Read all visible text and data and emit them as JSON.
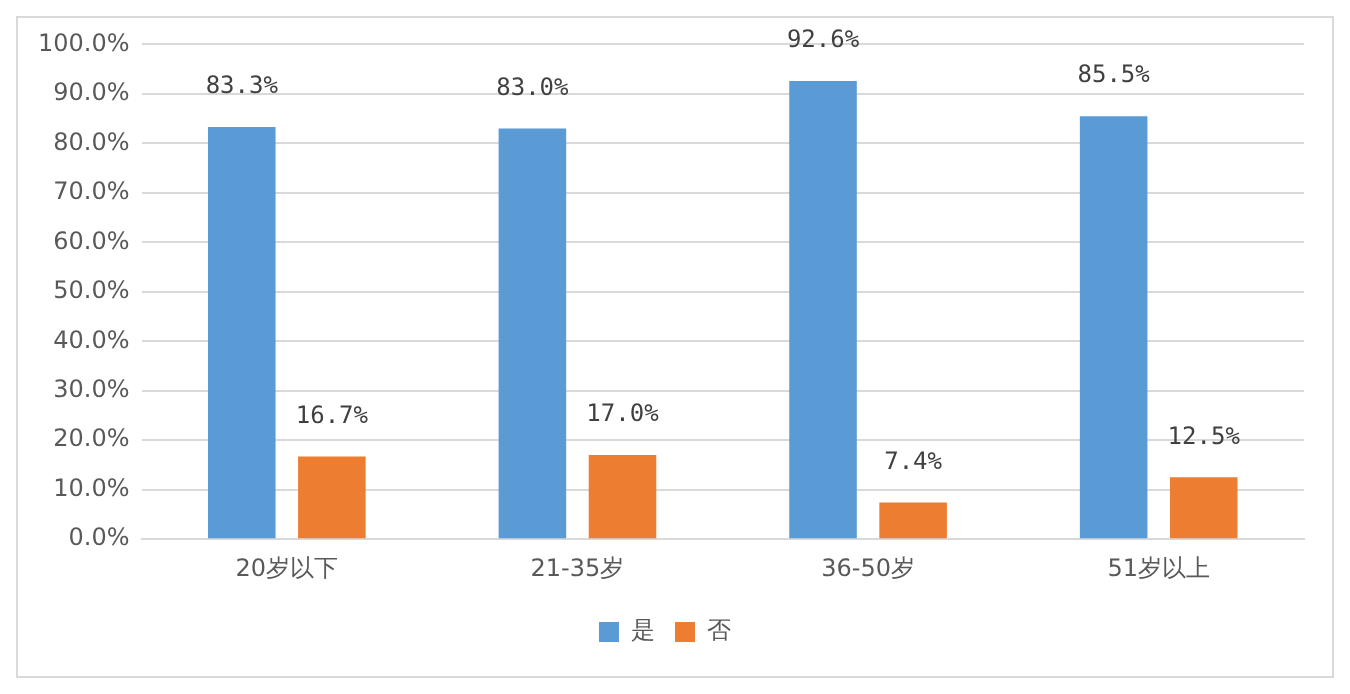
{
  "chart_data": {
    "type": "bar",
    "categories": [
      "20岁以下",
      "21-35岁",
      "36-50岁",
      "51岁以上"
    ],
    "series": [
      {
        "name": "是",
        "color": "#5b9bd5",
        "values": [
          83.3,
          83.0,
          92.6,
          85.5
        ],
        "value_labels": [
          "83.3%",
          "83.0%",
          "92.6%",
          "85.5%"
        ]
      },
      {
        "name": "否",
        "color": "#ed7d31",
        "values": [
          16.7,
          17.0,
          7.4,
          12.5
        ],
        "value_labels": [
          "16.7%",
          "17.0%",
          "7.4%",
          "12.5%"
        ]
      }
    ],
    "ylim": [
      0,
      100
    ],
    "yticks": [
      {
        "value": 0,
        "label": "0.0%"
      },
      {
        "value": 10,
        "label": "10.0%"
      },
      {
        "value": 20,
        "label": "20.0%"
      },
      {
        "value": 30,
        "label": "30.0%"
      },
      {
        "value": 40,
        "label": "40.0%"
      },
      {
        "value": 50,
        "label": "50.0%"
      },
      {
        "value": 60,
        "label": "60.0%"
      },
      {
        "value": 70,
        "label": "70.0%"
      },
      {
        "value": 80,
        "label": "80.0%"
      },
      {
        "value": 90,
        "label": "90.0%"
      },
      {
        "value": 100,
        "label": "100.0%"
      }
    ],
    "grid": "y",
    "legend": "bottom"
  }
}
